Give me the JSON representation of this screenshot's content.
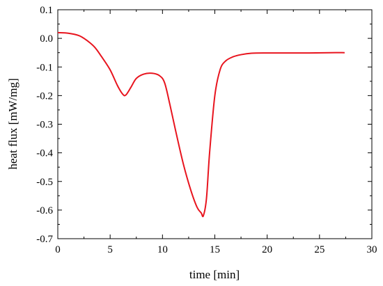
{
  "chart_data": {
    "type": "line",
    "title": "",
    "xlabel": "time [min]",
    "ylabel": "heat flux [mW/mg]",
    "xlim": [
      0,
      30
    ],
    "ylim": [
      -0.7,
      0.1
    ],
    "x_ticks": [
      0,
      5,
      10,
      15,
      20,
      25,
      30
    ],
    "x_tick_labels": [
      "0",
      "5",
      "10",
      "15",
      "20",
      "25",
      "30"
    ],
    "y_ticks": [
      0.1,
      0.0,
      -0.1,
      -0.2,
      -0.3,
      -0.4,
      -0.5,
      -0.6,
      -0.7
    ],
    "y_tick_labels": [
      "0.1",
      "0.0",
      "-0.1",
      "-0.2",
      "-0.3",
      "-0.4",
      "-0.5",
      "-0.6",
      "-0.7"
    ],
    "grid": false,
    "legend": "none",
    "series": [
      {
        "color": "#e8141e",
        "x": [
          0.0,
          1.0,
          2.0,
          2.7,
          3.5,
          4.2,
          5.0,
          5.7,
          6.2,
          6.5,
          7.0,
          7.5,
          8.2,
          9.0,
          9.7,
          10.2,
          10.7,
          11.3,
          12.0,
          12.7,
          13.3,
          13.7,
          13.9,
          14.2,
          14.5,
          15.0,
          15.5,
          16.0,
          16.7,
          17.5,
          18.5,
          20.0,
          22.0,
          24.0,
          26.0,
          27.4
        ],
        "values": [
          0.02,
          0.018,
          0.01,
          -0.005,
          -0.03,
          -0.065,
          -0.11,
          -0.165,
          -0.195,
          -0.198,
          -0.17,
          -0.14,
          -0.125,
          -0.122,
          -0.13,
          -0.155,
          -0.23,
          -0.33,
          -0.44,
          -0.53,
          -0.59,
          -0.61,
          -0.62,
          -0.56,
          -0.4,
          -0.2,
          -0.11,
          -0.08,
          -0.065,
          -0.057,
          -0.052,
          -0.051,
          -0.051,
          -0.051,
          -0.05,
          -0.05
        ]
      }
    ]
  }
}
